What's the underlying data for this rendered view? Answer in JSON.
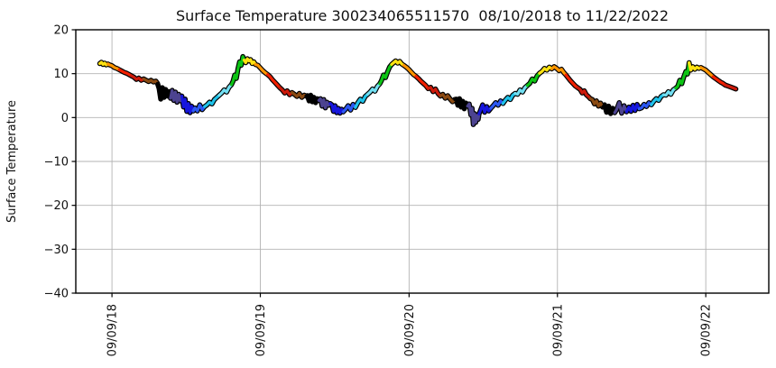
{
  "chart_data": {
    "type": "line",
    "title": "Surface Temperature 300234065511570  08/10/2018 to 11/22/2022",
    "ylabel": "Surface Temperature",
    "xlabel": "",
    "ylim": [
      -40,
      20
    ],
    "grid": true,
    "legend": "none",
    "line_outline_color": "#000000",
    "grid_color": "#b3b3b3",
    "axis_color": "#000000",
    "yticks": [
      {
        "v": 20,
        "label": "20"
      },
      {
        "v": 10,
        "label": "10"
      },
      {
        "v": 0,
        "label": "0"
      },
      {
        "v": -10,
        "label": "−10"
      },
      {
        "v": -20,
        "label": "−20"
      },
      {
        "v": -30,
        "label": "−30"
      },
      {
        "v": -40,
        "label": "−40"
      }
    ],
    "xticks": [
      {
        "date": "2018-09-09",
        "label": "09/09/18"
      },
      {
        "date": "2019-09-09",
        "label": "09/09/19"
      },
      {
        "date": "2020-09-09",
        "label": "09/09/20"
      },
      {
        "date": "2021-09-09",
        "label": "09/09/21"
      },
      {
        "date": "2022-09-09",
        "label": "09/09/22"
      }
    ],
    "x_domain": [
      "2018-06-12",
      "2023-02-11"
    ],
    "color_encoding": "month-of-year",
    "month_colors": {
      "1": "#000000",
      "2": "#4C4390",
      "3": "#1616DD",
      "4": "#2C58F2",
      "5": "#1FC3EA",
      "6": "#72DFF2",
      "7": "#0CC414",
      "8": "#FFE211",
      "9": "#FF9500",
      "10": "#F22000",
      "11": "#CC1A0A",
      "12": "#8A4A12"
    },
    "points": [
      [
        "2018-08-10",
        12.3
      ],
      [
        "2018-08-14",
        12.6
      ],
      [
        "2018-08-18",
        12.1
      ],
      [
        "2018-08-22",
        12.4
      ],
      [
        "2018-08-26",
        12.0
      ],
      [
        "2018-08-30",
        12.2
      ],
      [
        "2018-09-03",
        12.0
      ],
      [
        "2018-09-09",
        11.8
      ],
      [
        "2018-09-15",
        11.4
      ],
      [
        "2018-09-21",
        11.2
      ],
      [
        "2018-09-27",
        10.9
      ],
      [
        "2018-10-03",
        10.6
      ],
      [
        "2018-10-09",
        10.3
      ],
      [
        "2018-10-15",
        10.1
      ],
      [
        "2018-10-21",
        9.8
      ],
      [
        "2018-10-27",
        9.5
      ],
      [
        "2018-11-02",
        9.2
      ],
      [
        "2018-11-08",
        8.7
      ],
      [
        "2018-11-14",
        9.0
      ],
      [
        "2018-11-20",
        8.5
      ],
      [
        "2018-11-26",
        8.8
      ],
      [
        "2018-12-02",
        8.5
      ],
      [
        "2018-12-08",
        8.2
      ],
      [
        "2018-12-14",
        8.5
      ],
      [
        "2018-12-20",
        8.1
      ],
      [
        "2018-12-26",
        8.3
      ],
      [
        "2018-12-30",
        7.8
      ],
      [
        "2019-01-03",
        6.6
      ],
      [
        "2019-01-07",
        4.2
      ],
      [
        "2019-01-11",
        6.8
      ],
      [
        "2019-01-15",
        4.6
      ],
      [
        "2019-01-19",
        6.4
      ],
      [
        "2019-01-23",
        4.9
      ],
      [
        "2019-01-27",
        5.9
      ],
      [
        "2019-01-31",
        4.4
      ],
      [
        "2019-02-04",
        6.2
      ],
      [
        "2019-02-08",
        3.9
      ],
      [
        "2019-02-12",
        5.8
      ],
      [
        "2019-02-16",
        3.5
      ],
      [
        "2019-02-20",
        5.3
      ],
      [
        "2019-02-24",
        3.8
      ],
      [
        "2019-02-28",
        4.9
      ],
      [
        "2019-03-04",
        2.4
      ],
      [
        "2019-03-08",
        4.2
      ],
      [
        "2019-03-12",
        1.4
      ],
      [
        "2019-03-16",
        3.2
      ],
      [
        "2019-03-20",
        1.1
      ],
      [
        "2019-03-24",
        2.6
      ],
      [
        "2019-03-28",
        1.5
      ],
      [
        "2019-04-01",
        2.2
      ],
      [
        "2019-04-07",
        1.5
      ],
      [
        "2019-04-13",
        2.9
      ],
      [
        "2019-04-19",
        1.8
      ],
      [
        "2019-04-25",
        2.5
      ],
      [
        "2019-05-01",
        2.9
      ],
      [
        "2019-05-07",
        3.5
      ],
      [
        "2019-05-13",
        3.1
      ],
      [
        "2019-05-19",
        4.1
      ],
      [
        "2019-05-25",
        4.6
      ],
      [
        "2019-05-31",
        5.1
      ],
      [
        "2019-06-06",
        5.6
      ],
      [
        "2019-06-12",
        6.3
      ],
      [
        "2019-06-18",
        5.8
      ],
      [
        "2019-06-24",
        6.9
      ],
      [
        "2019-06-30",
        7.5
      ],
      [
        "2019-07-04",
        8.3
      ],
      [
        "2019-07-08",
        9.7
      ],
      [
        "2019-07-12",
        8.9
      ],
      [
        "2019-07-16",
        11.1
      ],
      [
        "2019-07-20",
        12.7
      ],
      [
        "2019-07-24",
        11.9
      ],
      [
        "2019-07-28",
        13.9
      ],
      [
        "2019-07-31",
        13.1
      ],
      [
        "2019-08-04",
        12.5
      ],
      [
        "2019-08-08",
        13.4
      ],
      [
        "2019-08-12",
        12.9
      ],
      [
        "2019-08-16",
        13.2
      ],
      [
        "2019-08-20",
        12.3
      ],
      [
        "2019-08-24",
        12.7
      ],
      [
        "2019-08-28",
        12.1
      ],
      [
        "2019-09-03",
        11.9
      ],
      [
        "2019-09-09",
        11.3
      ],
      [
        "2019-09-15",
        10.7
      ],
      [
        "2019-09-21",
        10.2
      ],
      [
        "2019-09-27",
        9.8
      ],
      [
        "2019-10-03",
        9.3
      ],
      [
        "2019-10-09",
        8.6
      ],
      [
        "2019-10-15",
        8.0
      ],
      [
        "2019-10-21",
        7.4
      ],
      [
        "2019-10-27",
        6.8
      ],
      [
        "2019-11-02",
        6.3
      ],
      [
        "2019-11-08",
        5.6
      ],
      [
        "2019-11-14",
        6.1
      ],
      [
        "2019-11-20",
        5.2
      ],
      [
        "2019-11-26",
        5.7
      ],
      [
        "2019-12-02",
        5.3
      ],
      [
        "2019-12-08",
        4.8
      ],
      [
        "2019-12-14",
        5.5
      ],
      [
        "2019-12-20",
        4.6
      ],
      [
        "2019-12-26",
        5.1
      ],
      [
        "2019-12-30",
        4.9
      ],
      [
        "2020-01-03",
        5.0
      ],
      [
        "2020-01-07",
        3.8
      ],
      [
        "2020-01-11",
        5.1
      ],
      [
        "2020-01-15",
        3.6
      ],
      [
        "2020-01-19",
        4.6
      ],
      [
        "2020-01-23",
        3.4
      ],
      [
        "2020-01-27",
        4.3
      ],
      [
        "2020-01-31",
        3.9
      ],
      [
        "2020-02-04",
        4.3
      ],
      [
        "2020-02-08",
        2.6
      ],
      [
        "2020-02-12",
        4.1
      ],
      [
        "2020-02-16",
        2.2
      ],
      [
        "2020-02-20",
        3.5
      ],
      [
        "2020-02-24",
        2.8
      ],
      [
        "2020-02-28",
        3.2
      ],
      [
        "2020-03-03",
        2.9
      ],
      [
        "2020-03-07",
        1.4
      ],
      [
        "2020-03-11",
        2.7
      ],
      [
        "2020-03-15",
        1.1
      ],
      [
        "2020-03-19",
        2.1
      ],
      [
        "2020-03-23",
        1.0
      ],
      [
        "2020-03-27",
        1.9
      ],
      [
        "2020-03-31",
        1.3
      ],
      [
        "2020-04-06",
        1.9
      ],
      [
        "2020-04-12",
        2.7
      ],
      [
        "2020-04-18",
        1.7
      ],
      [
        "2020-04-24",
        3.0
      ],
      [
        "2020-04-30",
        2.3
      ],
      [
        "2020-05-06",
        3.4
      ],
      [
        "2020-05-12",
        4.2
      ],
      [
        "2020-05-18",
        3.7
      ],
      [
        "2020-05-24",
        4.8
      ],
      [
        "2020-05-30",
        5.3
      ],
      [
        "2020-06-05",
        5.8
      ],
      [
        "2020-06-11",
        6.5
      ],
      [
        "2020-06-17",
        6.0
      ],
      [
        "2020-06-23",
        7.1
      ],
      [
        "2020-06-29",
        7.7
      ],
      [
        "2020-07-03",
        8.4
      ],
      [
        "2020-07-08",
        9.7
      ],
      [
        "2020-07-13",
        9.1
      ],
      [
        "2020-07-18",
        10.4
      ],
      [
        "2020-07-23",
        11.5
      ],
      [
        "2020-07-28",
        12.1
      ],
      [
        "2020-08-02",
        12.5
      ],
      [
        "2020-08-07",
        12.9
      ],
      [
        "2020-08-12",
        12.4
      ],
      [
        "2020-08-17",
        12.8
      ],
      [
        "2020-08-22",
        12.2
      ],
      [
        "2020-08-27",
        11.9
      ],
      [
        "2020-09-02",
        11.5
      ],
      [
        "2020-09-08",
        11.0
      ],
      [
        "2020-09-14",
        10.4
      ],
      [
        "2020-09-20",
        9.8
      ],
      [
        "2020-09-26",
        9.4
      ],
      [
        "2020-10-02",
        8.9
      ],
      [
        "2020-10-08",
        8.3
      ],
      [
        "2020-10-14",
        7.8
      ],
      [
        "2020-10-20",
        7.3
      ],
      [
        "2020-10-26",
        6.6
      ],
      [
        "2020-11-01",
        6.9
      ],
      [
        "2020-11-07",
        5.9
      ],
      [
        "2020-11-13",
        6.5
      ],
      [
        "2020-11-19",
        5.5
      ],
      [
        "2020-11-25",
        4.9
      ],
      [
        "2020-12-01",
        5.3
      ],
      [
        "2020-12-07",
        4.4
      ],
      [
        "2020-12-13",
        5.0
      ],
      [
        "2020-12-19",
        4.2
      ],
      [
        "2020-12-25",
        3.6
      ],
      [
        "2020-12-30",
        4.1
      ],
      [
        "2021-01-03",
        4.2
      ],
      [
        "2021-01-07",
        2.8
      ],
      [
        "2021-01-11",
        4.3
      ],
      [
        "2021-01-15",
        2.4
      ],
      [
        "2021-01-19",
        3.7
      ],
      [
        "2021-01-23",
        2.0
      ],
      [
        "2021-01-27",
        3.3
      ],
      [
        "2021-01-31",
        2.6
      ],
      [
        "2021-02-04",
        3.1
      ],
      [
        "2021-02-08",
        0.6
      ],
      [
        "2021-02-11",
        2.1
      ],
      [
        "2021-02-14",
        -1.6
      ],
      [
        "2021-02-17",
        0.9
      ],
      [
        "2021-02-20",
        -1.1
      ],
      [
        "2021-02-23",
        0.5
      ],
      [
        "2021-02-26",
        -0.4
      ],
      [
        "2021-02-28",
        0.8
      ],
      [
        "2021-03-04",
        1.7
      ],
      [
        "2021-03-09",
        2.9
      ],
      [
        "2021-03-14",
        1.2
      ],
      [
        "2021-03-19",
        2.5
      ],
      [
        "2021-03-24",
        1.5
      ],
      [
        "2021-03-29",
        2.1
      ],
      [
        "2021-04-04",
        2.7
      ],
      [
        "2021-04-10",
        3.4
      ],
      [
        "2021-04-16",
        2.8
      ],
      [
        "2021-04-22",
        3.8
      ],
      [
        "2021-04-28",
        3.2
      ],
      [
        "2021-05-04",
        4.0
      ],
      [
        "2021-05-10",
        4.6
      ],
      [
        "2021-05-16",
        4.1
      ],
      [
        "2021-05-22",
        5.1
      ],
      [
        "2021-05-28",
        5.5
      ],
      [
        "2021-06-03",
        5.3
      ],
      [
        "2021-06-09",
        6.3
      ],
      [
        "2021-06-15",
        5.8
      ],
      [
        "2021-06-21",
        6.8
      ],
      [
        "2021-06-27",
        7.3
      ],
      [
        "2021-07-03",
        7.8
      ],
      [
        "2021-07-09",
        8.8
      ],
      [
        "2021-07-15",
        8.3
      ],
      [
        "2021-07-21",
        9.5
      ],
      [
        "2021-07-27",
        10.1
      ],
      [
        "2021-08-02",
        10.5
      ],
      [
        "2021-08-08",
        11.2
      ],
      [
        "2021-08-14",
        10.8
      ],
      [
        "2021-08-20",
        11.5
      ],
      [
        "2021-08-26",
        11.1
      ],
      [
        "2021-09-01",
        11.6
      ],
      [
        "2021-09-07",
        11.2
      ],
      [
        "2021-09-13",
        10.7
      ],
      [
        "2021-09-19",
        11.0
      ],
      [
        "2021-09-25",
        10.2
      ],
      [
        "2021-09-30",
        9.7
      ],
      [
        "2021-10-05",
        9.1
      ],
      [
        "2021-10-11",
        8.4
      ],
      [
        "2021-10-17",
        7.8
      ],
      [
        "2021-10-23",
        7.2
      ],
      [
        "2021-10-29",
        6.8
      ],
      [
        "2021-11-04",
        6.4
      ],
      [
        "2021-11-09",
        5.6
      ],
      [
        "2021-11-14",
        6.1
      ],
      [
        "2021-11-19",
        5.2
      ],
      [
        "2021-11-24",
        4.8
      ],
      [
        "2021-11-29",
        4.3
      ],
      [
        "2021-12-04",
        4.1
      ],
      [
        "2021-12-09",
        3.1
      ],
      [
        "2021-12-14",
        3.8
      ],
      [
        "2021-12-19",
        2.6
      ],
      [
        "2021-12-24",
        3.3
      ],
      [
        "2021-12-29",
        2.4
      ],
      [
        "2022-01-03",
        2.9
      ],
      [
        "2022-01-08",
        1.2
      ],
      [
        "2022-01-13",
        2.6
      ],
      [
        "2022-01-18",
        0.9
      ],
      [
        "2022-01-23",
        2.1
      ],
      [
        "2022-01-28",
        1.1
      ],
      [
        "2022-02-02",
        1.9
      ],
      [
        "2022-02-08",
        3.4
      ],
      [
        "2022-02-14",
        1.0
      ],
      [
        "2022-02-20",
        2.7
      ],
      [
        "2022-02-26",
        1.3
      ],
      [
        "2022-03-04",
        2.4
      ],
      [
        "2022-03-09",
        1.4
      ],
      [
        "2022-03-14",
        2.8
      ],
      [
        "2022-03-19",
        1.6
      ],
      [
        "2022-03-24",
        3.0
      ],
      [
        "2022-03-29",
        2.0
      ],
      [
        "2022-04-04",
        2.2
      ],
      [
        "2022-04-10",
        3.0
      ],
      [
        "2022-04-16",
        2.5
      ],
      [
        "2022-04-22",
        3.4
      ],
      [
        "2022-04-28",
        2.9
      ],
      [
        "2022-05-04",
        3.7
      ],
      [
        "2022-05-10",
        4.3
      ],
      [
        "2022-05-16",
        3.9
      ],
      [
        "2022-05-22",
        4.8
      ],
      [
        "2022-05-28",
        5.2
      ],
      [
        "2022-06-03",
        5.1
      ],
      [
        "2022-06-09",
        5.9
      ],
      [
        "2022-06-15",
        5.3
      ],
      [
        "2022-06-21",
        6.3
      ],
      [
        "2022-06-27",
        6.7
      ],
      [
        "2022-07-02",
        7.1
      ],
      [
        "2022-07-07",
        8.5
      ],
      [
        "2022-07-12",
        7.7
      ],
      [
        "2022-07-17",
        9.3
      ],
      [
        "2022-07-22",
        10.5
      ],
      [
        "2022-07-26",
        9.9
      ],
      [
        "2022-07-30",
        12.5
      ],
      [
        "2022-08-03",
        10.8
      ],
      [
        "2022-08-08",
        11.6
      ],
      [
        "2022-08-13",
        11.0
      ],
      [
        "2022-08-18",
        11.5
      ],
      [
        "2022-08-23",
        11.2
      ],
      [
        "2022-08-28",
        11.4
      ],
      [
        "2022-09-03",
        11.1
      ],
      [
        "2022-09-09",
        10.8
      ],
      [
        "2022-09-15",
        10.3
      ],
      [
        "2022-09-21",
        9.8
      ],
      [
        "2022-09-27",
        9.3
      ],
      [
        "2022-10-03",
        8.9
      ],
      [
        "2022-10-09",
        8.5
      ],
      [
        "2022-10-15",
        8.1
      ],
      [
        "2022-10-21",
        7.8
      ],
      [
        "2022-10-27",
        7.4
      ],
      [
        "2022-11-02",
        7.2
      ],
      [
        "2022-11-08",
        7.0
      ],
      [
        "2022-11-14",
        6.8
      ],
      [
        "2022-11-22",
        6.5
      ]
    ]
  }
}
